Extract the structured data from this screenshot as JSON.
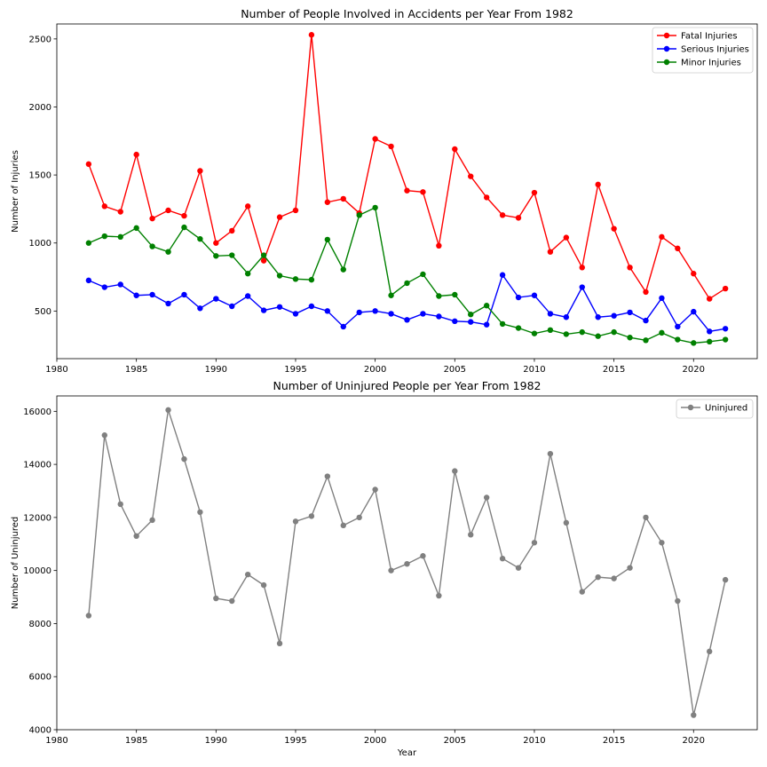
{
  "chart_data": [
    {
      "type": "line",
      "title": "Number of People Involved in Accidents per Year From 1982",
      "xlabel": "",
      "ylabel": "Number of Injuries",
      "xlim": [
        1980,
        2024
      ],
      "ylim": [
        150,
        2610
      ],
      "xticks": [
        1980,
        1985,
        1990,
        1995,
        2000,
        2005,
        2010,
        2015,
        2020
      ],
      "yticks": [
        500,
        1000,
        1500,
        2000,
        2500
      ],
      "grid": false,
      "legend_position": "top-right",
      "x": [
        1982,
        1983,
        1984,
        1985,
        1986,
        1987,
        1988,
        1989,
        1990,
        1991,
        1992,
        1993,
        1994,
        1995,
        1996,
        1997,
        1998,
        1999,
        2000,
        2001,
        2002,
        2003,
        2004,
        2005,
        2006,
        2007,
        2008,
        2009,
        2010,
        2011,
        2012,
        2013,
        2014,
        2015,
        2016,
        2017,
        2018,
        2019,
        2020,
        2021,
        2022
      ],
      "series": [
        {
          "name": "Fatal Injuries",
          "color": "#ff0000",
          "values": [
            1580,
            1270,
            1230,
            1650,
            1180,
            1240,
            1200,
            1530,
            1000,
            1090,
            1270,
            870,
            1190,
            1240,
            2530,
            1300,
            1325,
            1220,
            1765,
            1710,
            1385,
            1375,
            980,
            1690,
            1490,
            1335,
            1205,
            1185,
            1370,
            935,
            1040,
            820,
            1430,
            1105,
            820,
            640,
            1045,
            960,
            775,
            590,
            665
          ]
        },
        {
          "name": "Serious Injuries",
          "color": "#0000ff",
          "values": [
            725,
            675,
            695,
            615,
            620,
            555,
            620,
            520,
            590,
            535,
            610,
            505,
            530,
            480,
            535,
            500,
            385,
            490,
            500,
            480,
            435,
            480,
            460,
            425,
            420,
            400,
            765,
            600,
            615,
            480,
            455,
            675,
            455,
            465,
            490,
            430,
            595,
            385,
            495,
            350,
            370
          ]
        },
        {
          "name": "Minor Injuries",
          "color": "#008000",
          "values": [
            1000,
            1050,
            1045,
            1110,
            975,
            935,
            1115,
            1030,
            905,
            910,
            775,
            910,
            760,
            735,
            730,
            1025,
            805,
            1205,
            1260,
            615,
            705,
            770,
            610,
            620,
            475,
            540,
            405,
            375,
            335,
            360,
            330,
            345,
            315,
            345,
            305,
            285,
            340,
            290,
            265,
            275,
            290
          ]
        }
      ]
    },
    {
      "type": "line",
      "title": "Number of Uninjured People per Year From 1982",
      "xlabel": "Year",
      "ylabel": "Number of Uninjured",
      "xlim": [
        1980,
        2024
      ],
      "ylim": [
        4000,
        16580
      ],
      "xticks": [
        1980,
        1985,
        1990,
        1995,
        2000,
        2005,
        2010,
        2015,
        2020
      ],
      "yticks": [
        4000,
        6000,
        8000,
        10000,
        12000,
        14000,
        16000
      ],
      "grid": false,
      "legend_position": "top-right",
      "x": [
        1982,
        1983,
        1984,
        1985,
        1986,
        1987,
        1988,
        1989,
        1990,
        1991,
        1992,
        1993,
        1994,
        1995,
        1996,
        1997,
        1998,
        1999,
        2000,
        2001,
        2002,
        2003,
        2004,
        2005,
        2006,
        2007,
        2008,
        2009,
        2010,
        2011,
        2012,
        2013,
        2014,
        2015,
        2016,
        2017,
        2018,
        2019,
        2020,
        2021,
        2022
      ],
      "series": [
        {
          "name": "Uninjured",
          "color": "#808080",
          "values": [
            8300,
            15100,
            12500,
            11300,
            11900,
            16050,
            14200,
            12200,
            8950,
            8850,
            9850,
            9450,
            7250,
            11850,
            12050,
            13550,
            11700,
            12000,
            13050,
            10000,
            10250,
            10550,
            9050,
            13750,
            11350,
            12750,
            10450,
            10100,
            11050,
            14400,
            11800,
            9200,
            9750,
            9700,
            10100,
            12000,
            11050,
            8850,
            4550,
            6950,
            9650
          ]
        }
      ]
    }
  ]
}
